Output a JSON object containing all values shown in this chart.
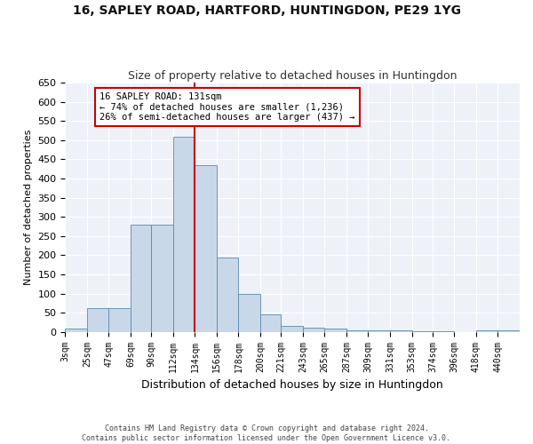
{
  "title": "16, SAPLEY ROAD, HARTFORD, HUNTINGDON, PE29 1YG",
  "subtitle": "Size of property relative to detached houses in Huntingdon",
  "xlabel": "Distribution of detached houses by size in Huntingdon",
  "ylabel": "Number of detached properties",
  "footer1": "Contains HM Land Registry data © Crown copyright and database right 2024.",
  "footer2": "Contains public sector information licensed under the Open Government Licence v3.0.",
  "bin_labels": [
    "3sqm",
    "25sqm",
    "47sqm",
    "69sqm",
    "90sqm",
    "112sqm",
    "134sqm",
    "156sqm",
    "178sqm",
    "200sqm",
    "221sqm",
    "243sqm",
    "265sqm",
    "287sqm",
    "309sqm",
    "331sqm",
    "353sqm",
    "374sqm",
    "396sqm",
    "418sqm",
    "440sqm"
  ],
  "bar_values": [
    8,
    63,
    63,
    280,
    280,
    510,
    435,
    193,
    100,
    45,
    15,
    10,
    8,
    5,
    4,
    3,
    2,
    1,
    0,
    4,
    3
  ],
  "bin_edges": [
    3,
    25,
    47,
    69,
    90,
    112,
    134,
    156,
    178,
    200,
    221,
    243,
    265,
    287,
    309,
    331,
    353,
    374,
    396,
    418,
    440,
    462
  ],
  "red_line_x": 134,
  "bar_color": "#c8d8e8",
  "bar_edge_color": "#5a8ab0",
  "red_line_color": "#cc0000",
  "background_color": "#eef2f8",
  "annotation_line1": "16 SAPLEY ROAD: 131sqm",
  "annotation_line2": "← 74% of detached houses are smaller (1,236)",
  "annotation_line3": "26% of semi-detached houses are larger (437) →",
  "annotation_box_color": "white",
  "annotation_box_edge": "#cc0000",
  "ylim": [
    0,
    650
  ],
  "yticks": [
    0,
    50,
    100,
    150,
    200,
    250,
    300,
    350,
    400,
    450,
    500,
    550,
    600,
    650
  ]
}
